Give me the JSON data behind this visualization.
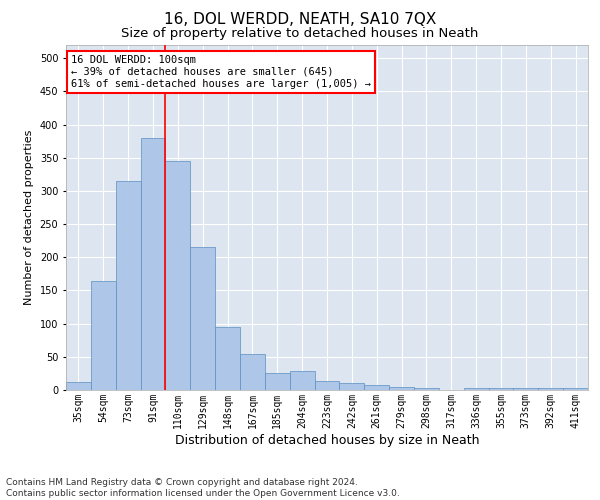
{
  "title": "16, DOL WERDD, NEATH, SA10 7QX",
  "subtitle": "Size of property relative to detached houses in Neath",
  "xlabel": "Distribution of detached houses by size in Neath",
  "ylabel": "Number of detached properties",
  "categories": [
    "35sqm",
    "54sqm",
    "73sqm",
    "91sqm",
    "110sqm",
    "129sqm",
    "148sqm",
    "167sqm",
    "185sqm",
    "204sqm",
    "223sqm",
    "242sqm",
    "261sqm",
    "279sqm",
    "298sqm",
    "317sqm",
    "336sqm",
    "355sqm",
    "373sqm",
    "392sqm",
    "411sqm"
  ],
  "values": [
    12,
    165,
    315,
    380,
    345,
    215,
    95,
    55,
    25,
    28,
    13,
    10,
    8,
    5,
    3,
    0,
    3,
    3,
    3,
    3,
    3
  ],
  "bar_color": "#aec6e8",
  "bar_edge_color": "#5a8fc2",
  "vline_x": 3.5,
  "vline_color": "red",
  "annotation_text": "16 DOL WERDD: 100sqm\n← 39% of detached houses are smaller (645)\n61% of semi-detached houses are larger (1,005) →",
  "annotation_box_color": "white",
  "annotation_box_edge_color": "red",
  "ylim": [
    0,
    520
  ],
  "yticks": [
    0,
    50,
    100,
    150,
    200,
    250,
    300,
    350,
    400,
    450,
    500
  ],
  "footnote": "Contains HM Land Registry data © Crown copyright and database right 2024.\nContains public sector information licensed under the Open Government Licence v3.0.",
  "plot_bg_color": "#dde6f0",
  "title_fontsize": 11,
  "subtitle_fontsize": 9.5,
  "xlabel_fontsize": 9,
  "ylabel_fontsize": 8,
  "tick_fontsize": 7,
  "annotation_fontsize": 7.5,
  "footnote_fontsize": 6.5
}
